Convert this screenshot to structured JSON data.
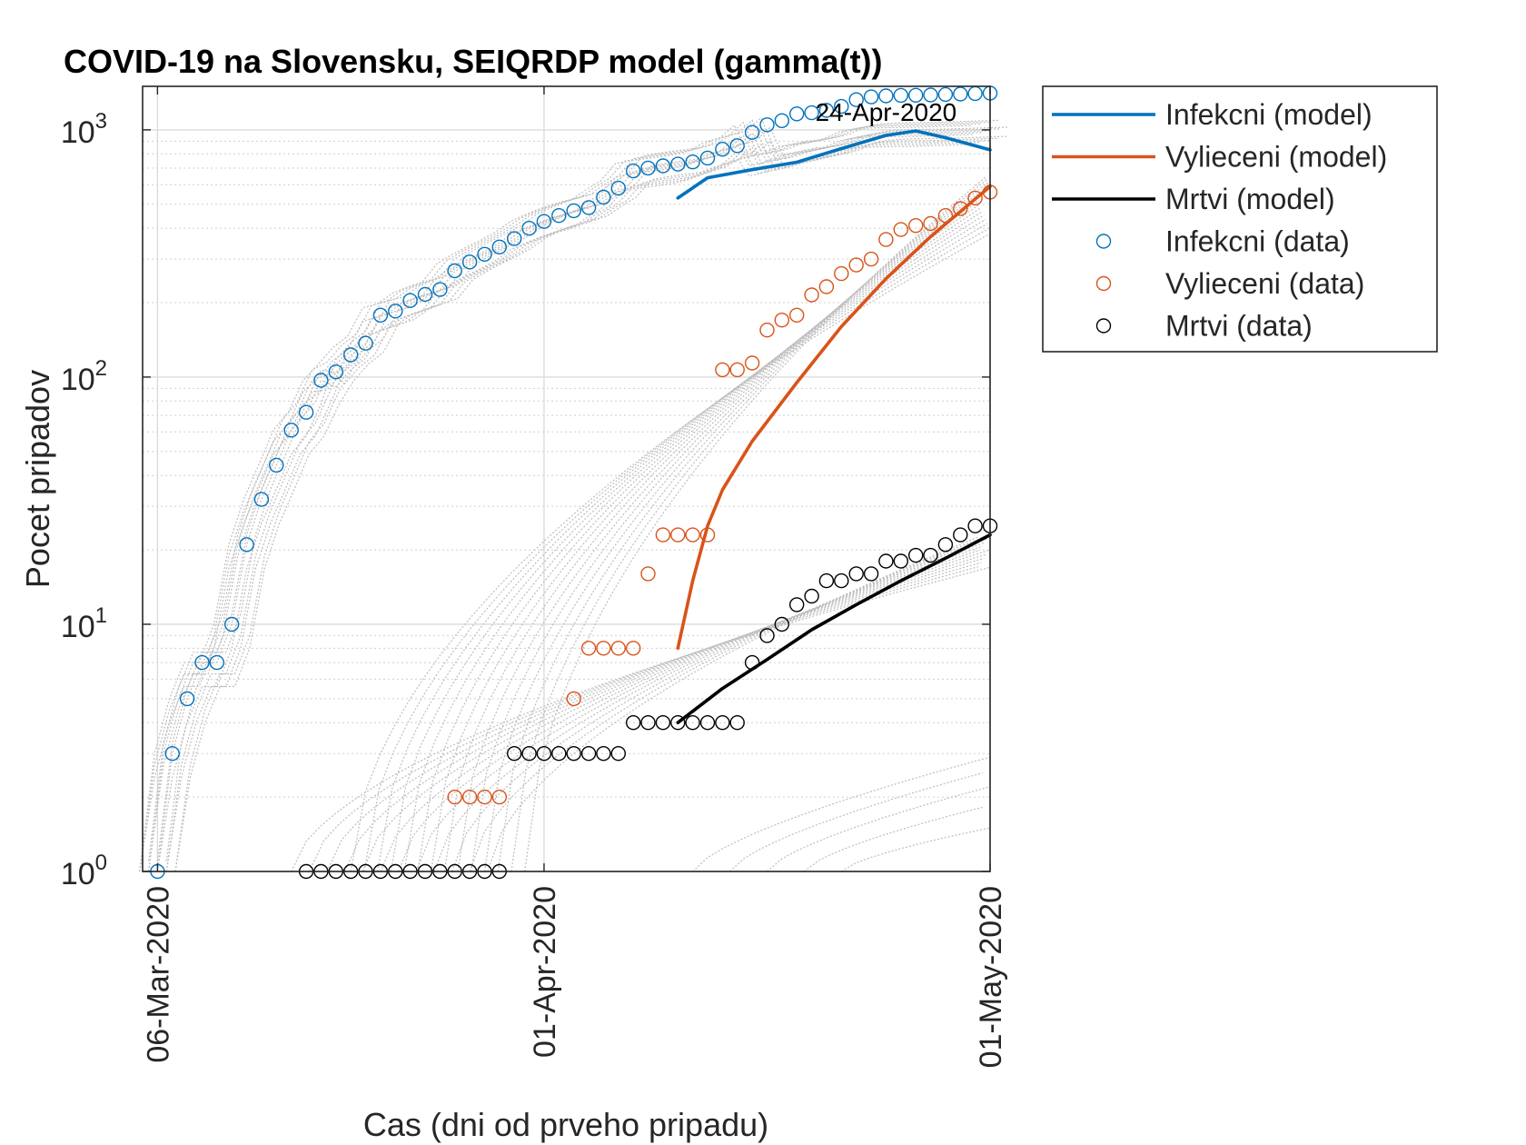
{
  "chart_data": {
    "type": "line",
    "title": "COVID-19 na Slovensku, SEIQRDP model (gamma(t))",
    "xlabel": "Cas (dni od prveho pripadu)",
    "ylabel": "Pocet pripadov",
    "y_scale": "log",
    "ylim": [
      1,
      1500
    ],
    "xlim": [
      "2020-03-05",
      "2020-05-01"
    ],
    "x_ticks": [
      "06-Mar-2020",
      "01-Apr-2020",
      "01-May-2020"
    ],
    "y_ticks": [
      {
        "base": "10",
        "exp": "0"
      },
      {
        "base": "10",
        "exp": "1"
      },
      {
        "base": "10",
        "exp": "2"
      },
      {
        "base": "10",
        "exp": "3"
      }
    ],
    "grid": true,
    "legend_position": "outside-top-right",
    "annotation": {
      "text": "24-Apr-2020",
      "x": "2020-04-24",
      "y": 1000
    },
    "colors": {
      "infected": "#0072BD",
      "recovered": "#D95319",
      "deaths": "#000000",
      "ensemble": "#BDBDBD"
    },
    "series": [
      {
        "name": "Infekcni (model)",
        "kind": "line",
        "key": "infected",
        "x": [
          "2020-04-10",
          "2020-04-12",
          "2020-04-15",
          "2020-04-18",
          "2020-04-21",
          "2020-04-24",
          "2020-04-26",
          "2020-04-28",
          "2020-05-01"
        ],
        "y": [
          530,
          640,
          690,
          740,
          840,
          950,
          990,
          930,
          830
        ]
      },
      {
        "name": "Vylieceni (model)",
        "kind": "line",
        "key": "recovered",
        "x": [
          "2020-04-10",
          "2020-04-11",
          "2020-04-12",
          "2020-04-13",
          "2020-04-15",
          "2020-04-18",
          "2020-04-21",
          "2020-04-24",
          "2020-04-27",
          "2020-05-01"
        ],
        "y": [
          8,
          15,
          25,
          35,
          55,
          95,
          160,
          250,
          370,
          590
        ]
      },
      {
        "name": "Mrtvi (model)",
        "kind": "line",
        "key": "deaths",
        "x": [
          "2020-04-10",
          "2020-04-13",
          "2020-04-16",
          "2020-04-19",
          "2020-04-22",
          "2020-04-25",
          "2020-04-28",
          "2020-05-01"
        ],
        "y": [
          4,
          5.5,
          7.2,
          9.5,
          12,
          15,
          18.5,
          23
        ]
      },
      {
        "name": "Infekcni (data)",
        "kind": "markers",
        "key": "infected",
        "x": [
          "2020-03-06",
          "2020-03-07",
          "2020-03-08",
          "2020-03-09",
          "2020-03-10",
          "2020-03-11",
          "2020-03-12",
          "2020-03-13",
          "2020-03-14",
          "2020-03-15",
          "2020-03-16",
          "2020-03-17",
          "2020-03-18",
          "2020-03-19",
          "2020-03-20",
          "2020-03-21",
          "2020-03-22",
          "2020-03-23",
          "2020-03-24",
          "2020-03-25",
          "2020-03-26",
          "2020-03-27",
          "2020-03-28",
          "2020-03-29",
          "2020-03-30",
          "2020-03-31",
          "2020-04-01",
          "2020-04-02",
          "2020-04-03",
          "2020-04-04",
          "2020-04-05",
          "2020-04-06",
          "2020-04-07",
          "2020-04-08",
          "2020-04-09",
          "2020-04-10",
          "2020-04-11",
          "2020-04-12",
          "2020-04-13",
          "2020-04-14",
          "2020-04-15",
          "2020-04-16",
          "2020-04-17",
          "2020-04-18",
          "2020-04-19",
          "2020-04-20",
          "2020-04-21",
          "2020-04-22",
          "2020-04-23",
          "2020-04-24",
          "2020-04-25",
          "2020-04-26",
          "2020-04-27",
          "2020-04-28",
          "2020-04-29",
          "2020-04-30",
          "2020-05-01"
        ],
        "y": [
          1,
          3,
          5,
          7,
          7,
          10,
          21,
          32,
          44,
          61,
          72,
          97,
          105,
          123,
          137,
          178,
          185,
          204,
          216,
          226,
          269,
          292,
          314,
          336,
          363,
          400,
          426,
          450,
          471,
          485,
          534,
          581,
          682,
          701,
          715,
          727,
          742,
          769,
          835,
          863,
          977,
          1049,
          1089,
          1161,
          1173,
          1199,
          1244,
          1325,
          1360,
          1373,
          1379,
          1381,
          1384,
          1391,
          1396,
          1403,
          1408
        ]
      },
      {
        "name": "Vylieceni (data)",
        "kind": "markers",
        "key": "recovered",
        "x": [
          "2020-03-26",
          "2020-03-27",
          "2020-03-28",
          "2020-03-29",
          "2020-04-03",
          "2020-04-04",
          "2020-04-05",
          "2020-04-06",
          "2020-04-07",
          "2020-04-08",
          "2020-04-09",
          "2020-04-10",
          "2020-04-11",
          "2020-04-12",
          "2020-04-13",
          "2020-04-14",
          "2020-04-15",
          "2020-04-16",
          "2020-04-17",
          "2020-04-18",
          "2020-04-19",
          "2020-04-20",
          "2020-04-21",
          "2020-04-22",
          "2020-04-23",
          "2020-04-24",
          "2020-04-25",
          "2020-04-26",
          "2020-04-27",
          "2020-04-28",
          "2020-04-29",
          "2020-04-30",
          "2020-05-01"
        ],
        "y": [
          2,
          2,
          2,
          2,
          5,
          8,
          8,
          8,
          8,
          16,
          23,
          23,
          23,
          23,
          107,
          107,
          114,
          155,
          170,
          178,
          215,
          232,
          262,
          284,
          300,
          360,
          395,
          410,
          418,
          450,
          480,
          530,
          560
        ]
      },
      {
        "name": "Mrtvi (data)",
        "kind": "markers",
        "key": "deaths",
        "x": [
          "2020-03-16",
          "2020-03-17",
          "2020-03-18",
          "2020-03-19",
          "2020-03-20",
          "2020-03-21",
          "2020-03-22",
          "2020-03-23",
          "2020-03-24",
          "2020-03-25",
          "2020-03-26",
          "2020-03-27",
          "2020-03-28",
          "2020-03-29",
          "2020-03-30",
          "2020-03-31",
          "2020-04-01",
          "2020-04-02",
          "2020-04-03",
          "2020-04-04",
          "2020-04-05",
          "2020-04-06",
          "2020-04-07",
          "2020-04-08",
          "2020-04-09",
          "2020-04-10",
          "2020-04-11",
          "2020-04-12",
          "2020-04-13",
          "2020-04-14",
          "2020-04-15",
          "2020-04-16",
          "2020-04-17",
          "2020-04-18",
          "2020-04-19",
          "2020-04-20",
          "2020-04-21",
          "2020-04-22",
          "2020-04-23",
          "2020-04-24",
          "2020-04-25",
          "2020-04-26",
          "2020-04-27",
          "2020-04-28",
          "2020-04-29",
          "2020-04-30",
          "2020-05-01"
        ],
        "y": [
          1,
          1,
          1,
          1,
          1,
          1,
          1,
          1,
          1,
          1,
          1,
          1,
          1,
          1,
          3,
          3,
          3,
          3,
          3,
          3,
          3,
          3,
          4,
          4,
          4,
          4,
          4,
          4,
          4,
          4,
          7,
          9,
          10,
          12,
          13,
          15,
          15,
          16,
          16,
          18,
          18,
          19,
          19,
          21,
          23,
          25,
          25
        ]
      }
    ]
  }
}
